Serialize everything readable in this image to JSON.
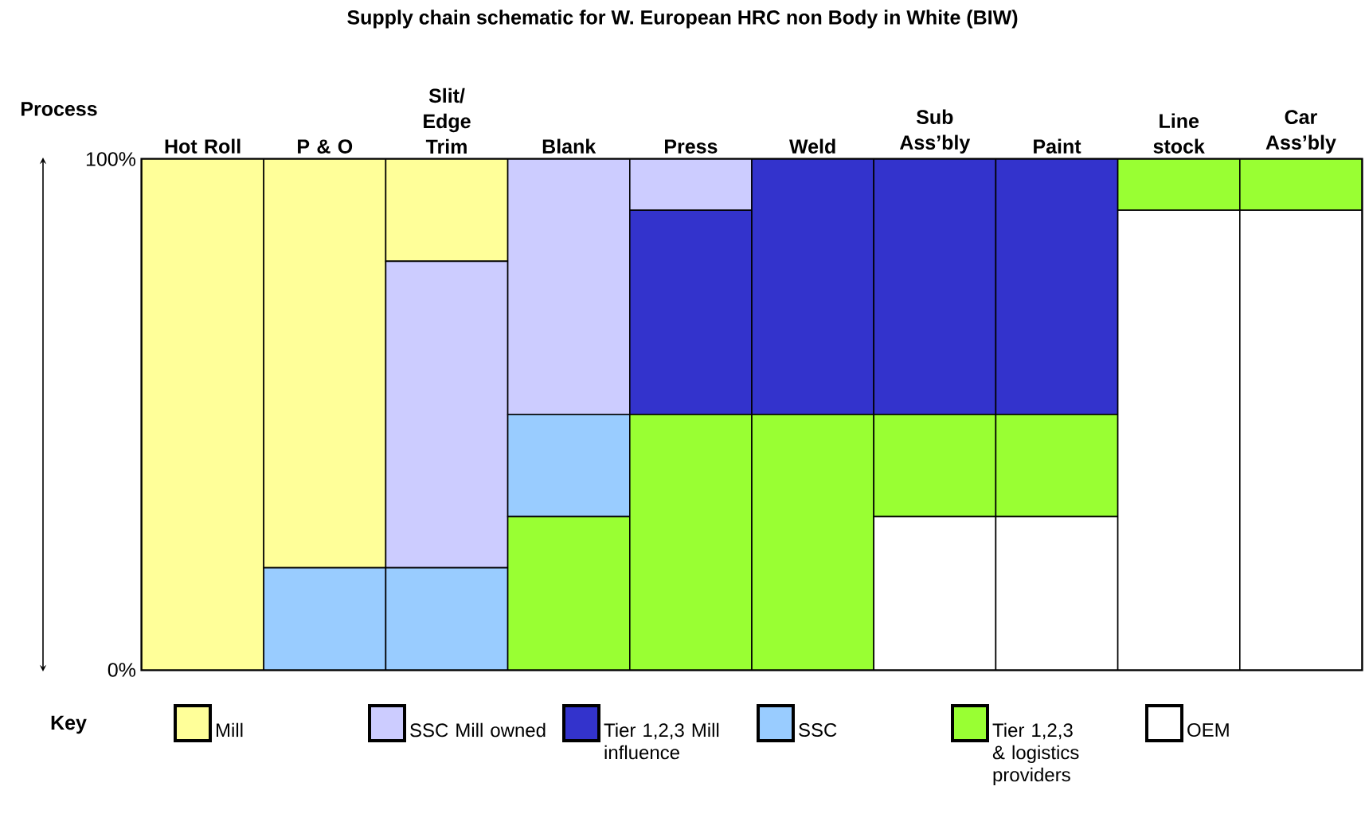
{
  "chart_data": {
    "type": "bar",
    "stacked": true,
    "title": "Supply chain schematic for W. European HRC non Body in White (BIW)",
    "xlabel": "Process",
    "legend_title": "Key",
    "legend": "bottom",
    "categories": [
      "Hot Roll",
      "P & O",
      "Slit/ Edge Trim",
      "Blank",
      "Press",
      "Weld",
      "Sub Ass’bly",
      "Paint",
      "Line stock",
      "Car Ass’bly"
    ],
    "ylim": [
      0,
      100
    ],
    "yticks": [
      {
        "value": 0,
        "label": "0%"
      },
      {
        "value": 100,
        "label": "100%"
      }
    ],
    "series": [
      {
        "name": "OEM",
        "color": "#ffffff",
        "values": [
          0,
          0,
          0,
          0,
          0,
          0,
          30,
          30,
          90,
          90
        ]
      },
      {
        "name": "Tier 1,2,3 & logistics providers",
        "color": "#99ff33",
        "values": [
          0,
          0,
          0,
          30,
          50,
          50,
          20,
          20,
          10,
          10
        ]
      },
      {
        "name": "SSC",
        "color": "#99ccff",
        "values": [
          0,
          20,
          20,
          20,
          0,
          0,
          0,
          0,
          0,
          0
        ]
      },
      {
        "name": "Tier 1,2,3 Mill influence",
        "color": "#3333cc",
        "values": [
          0,
          0,
          0,
          0,
          40,
          50,
          50,
          50,
          0,
          0
        ]
      },
      {
        "name": "SSC Mill owned",
        "color": "#ccccff",
        "values": [
          0,
          0,
          60,
          50,
          10,
          0,
          0,
          0,
          0,
          0
        ]
      },
      {
        "name": "Mill",
        "color": "#ffff99",
        "values": [
          100,
          80,
          20,
          0,
          0,
          0,
          0,
          0,
          0,
          0
        ]
      }
    ]
  }
}
